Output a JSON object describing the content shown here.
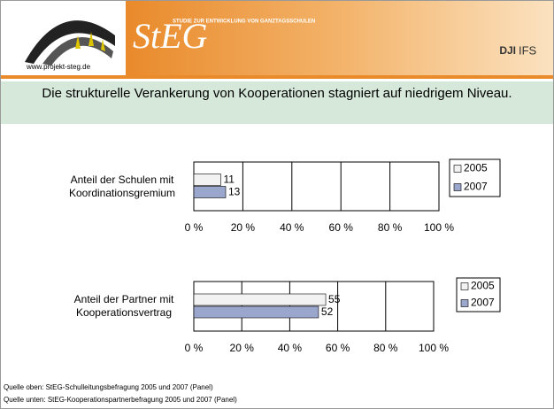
{
  "header": {
    "url": "www.projekt-steg.de",
    "logo": "StEG",
    "subtitle": "STUDIE ZUR ENTWICKLUNG VON GANZTAGSSCHULEN",
    "dji": "DJI",
    "ifs": "IFS"
  },
  "title": "Die strukturelle Verankerung von Kooperationen stagniert auf niedrigem Niveau.",
  "chart_data": [
    {
      "type": "bar",
      "orientation": "horizontal",
      "categories": [
        "Anteil der Schulen mit Koordinationsgremium"
      ],
      "series": [
        {
          "name": "2005",
          "color": "#f2f2f2",
          "values": [
            11
          ]
        },
        {
          "name": "2007",
          "color": "#9aa6cc",
          "values": [
            13
          ]
        }
      ],
      "xlim": [
        0,
        100
      ],
      "xticks": [
        {
          "value": 0,
          "label": "0 %"
        },
        {
          "value": 20,
          "label": "20 %"
        },
        {
          "value": 40,
          "label": "40 %"
        },
        {
          "value": 60,
          "label": "60 %"
        },
        {
          "value": 80,
          "label": "80 %"
        },
        {
          "value": 100,
          "label": "100 %"
        }
      ],
      "grid": true,
      "legend": "right"
    },
    {
      "type": "bar",
      "orientation": "horizontal",
      "categories": [
        "Anteil der Partner mit Kooperationsvertrag"
      ],
      "series": [
        {
          "name": "2005",
          "color": "#f2f2f2",
          "values": [
            55
          ]
        },
        {
          "name": "2007",
          "color": "#9aa6cc",
          "values": [
            52
          ]
        }
      ],
      "xlim": [
        0,
        100
      ],
      "xticks": [
        {
          "value": 0,
          "label": "0 %"
        },
        {
          "value": 20,
          "label": "20 %"
        },
        {
          "value": 40,
          "label": "40 %"
        },
        {
          "value": 60,
          "label": "60 %"
        },
        {
          "value": 80,
          "label": "80 %"
        },
        {
          "value": 100,
          "label": "100 %"
        }
      ],
      "grid": true,
      "legend": "right"
    }
  ],
  "sources": [
    "Quelle oben: StEG-Schulleitungsbefragung 2005 und 2007 (Panel)",
    "Quelle unten: StEG-Kooperationspartnerbefragung 2005 und 2007 (Panel)"
  ]
}
